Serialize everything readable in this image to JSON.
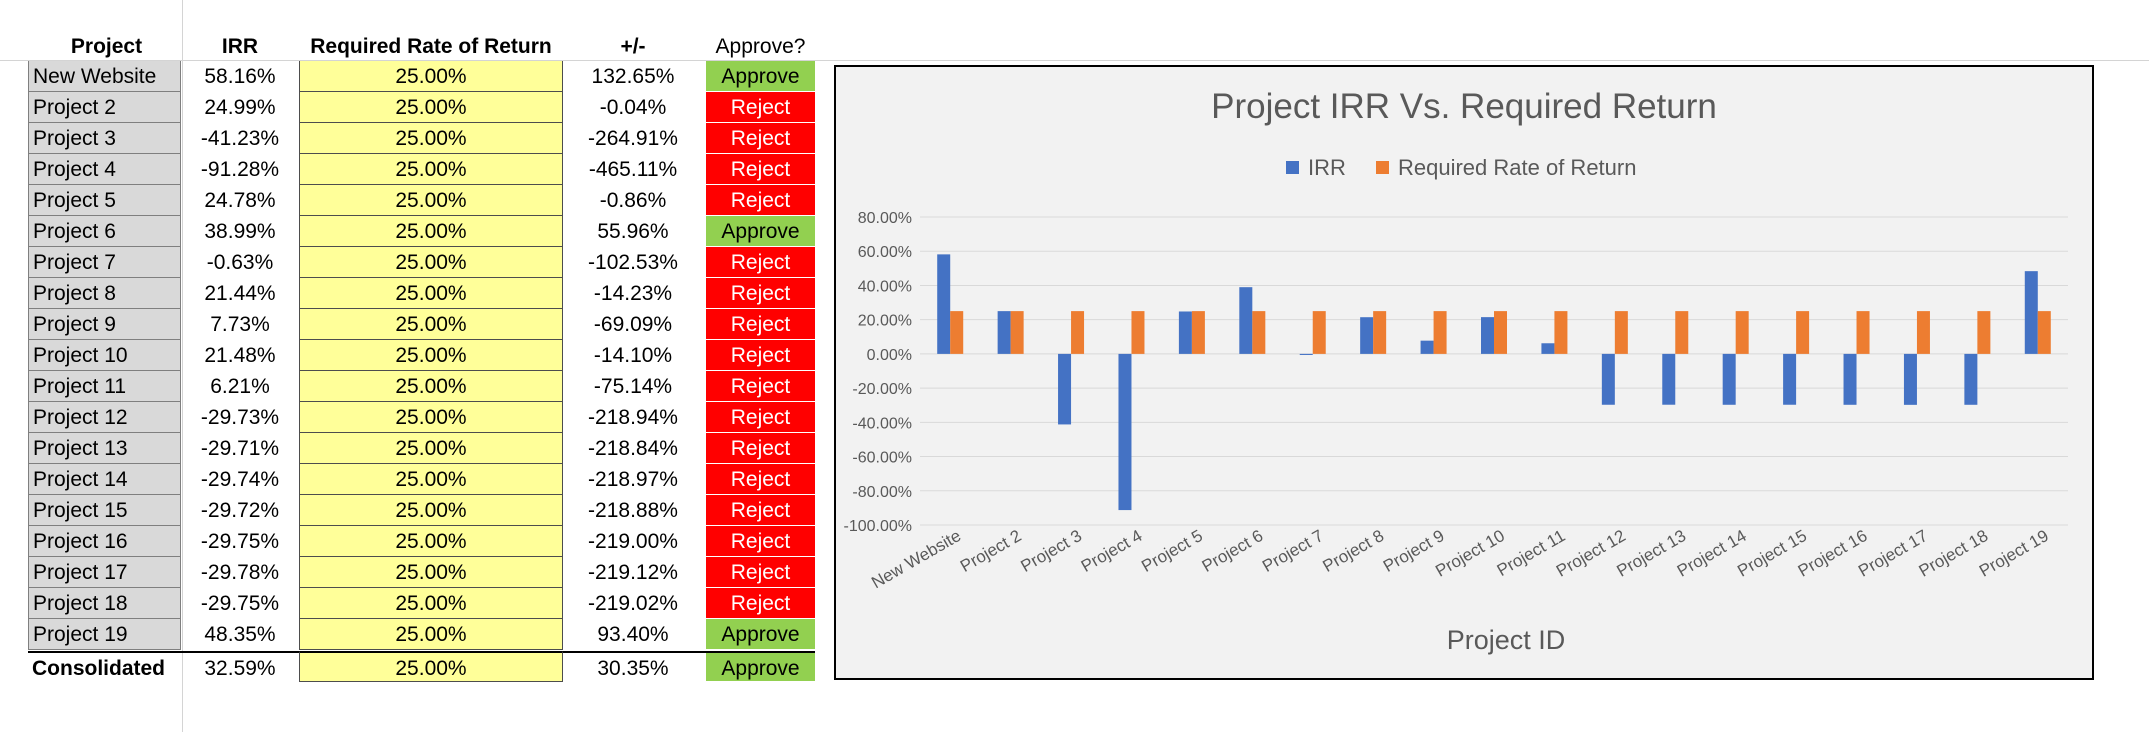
{
  "table": {
    "headers": {
      "project": "Project",
      "irr": "IRR",
      "rrr": "Required Rate of Return",
      "diff": "+/-",
      "approve": "Approve?"
    },
    "rows": [
      {
        "project": "New Website",
        "irr": "58.16%",
        "rrr": "25.00%",
        "diff": "132.65%",
        "decision": "Approve"
      },
      {
        "project": "Project 2",
        "irr": "24.99%",
        "rrr": "25.00%",
        "diff": "-0.04%",
        "decision": "Reject"
      },
      {
        "project": "Project 3",
        "irr": "-41.23%",
        "rrr": "25.00%",
        "diff": "-264.91%",
        "decision": "Reject"
      },
      {
        "project": "Project 4",
        "irr": "-91.28%",
        "rrr": "25.00%",
        "diff": "-465.11%",
        "decision": "Reject"
      },
      {
        "project": "Project 5",
        "irr": "24.78%",
        "rrr": "25.00%",
        "diff": "-0.86%",
        "decision": "Reject"
      },
      {
        "project": "Project 6",
        "irr": "38.99%",
        "rrr": "25.00%",
        "diff": "55.96%",
        "decision": "Approve"
      },
      {
        "project": "Project 7",
        "irr": "-0.63%",
        "rrr": "25.00%",
        "diff": "-102.53%",
        "decision": "Reject"
      },
      {
        "project": "Project 8",
        "irr": "21.44%",
        "rrr": "25.00%",
        "diff": "-14.23%",
        "decision": "Reject"
      },
      {
        "project": "Project 9",
        "irr": "7.73%",
        "rrr": "25.00%",
        "diff": "-69.09%",
        "decision": "Reject"
      },
      {
        "project": "Project 10",
        "irr": "21.48%",
        "rrr": "25.00%",
        "diff": "-14.10%",
        "decision": "Reject"
      },
      {
        "project": "Project 11",
        "irr": "6.21%",
        "rrr": "25.00%",
        "diff": "-75.14%",
        "decision": "Reject"
      },
      {
        "project": "Project 12",
        "irr": "-29.73%",
        "rrr": "25.00%",
        "diff": "-218.94%",
        "decision": "Reject"
      },
      {
        "project": "Project 13",
        "irr": "-29.71%",
        "rrr": "25.00%",
        "diff": "-218.84%",
        "decision": "Reject"
      },
      {
        "project": "Project 14",
        "irr": "-29.74%",
        "rrr": "25.00%",
        "diff": "-218.97%",
        "decision": "Reject"
      },
      {
        "project": "Project 15",
        "irr": "-29.72%",
        "rrr": "25.00%",
        "diff": "-218.88%",
        "decision": "Reject"
      },
      {
        "project": "Project 16",
        "irr": "-29.75%",
        "rrr": "25.00%",
        "diff": "-219.00%",
        "decision": "Reject"
      },
      {
        "project": "Project 17",
        "irr": "-29.78%",
        "rrr": "25.00%",
        "diff": "-219.12%",
        "decision": "Reject"
      },
      {
        "project": "Project 18",
        "irr": "-29.75%",
        "rrr": "25.00%",
        "diff": "-219.02%",
        "decision": "Reject"
      },
      {
        "project": "Project 19",
        "irr": "48.35%",
        "rrr": "25.00%",
        "diff": "93.40%",
        "decision": "Approve"
      }
    ],
    "total": {
      "project": "Consolidated",
      "irr": "32.59%",
      "rrr": "25.00%",
      "diff": "30.35%",
      "decision": "Approve"
    }
  },
  "colors": {
    "approve": "#92d050",
    "reject": "#ff0000",
    "required_fill": "#ffff99",
    "project_fill": "#d9d9d9",
    "irr_series": "#4472c4",
    "rrr_series": "#ed7d31"
  },
  "chart_data": {
    "type": "bar",
    "title": "Project IRR Vs. Required Return",
    "xlabel": "Project ID",
    "ylabel": "",
    "ylim": [
      -100,
      80
    ],
    "yticks": [
      80,
      60,
      40,
      20,
      0,
      -20,
      -40,
      -60,
      -80,
      -100
    ],
    "ytick_labels": [
      "80.00%",
      "60.00%",
      "40.00%",
      "20.00%",
      "0.00%",
      "-20.00%",
      "-40.00%",
      "-60.00%",
      "-80.00%",
      "-100.00%"
    ],
    "grid": true,
    "legend": "top",
    "categories": [
      "New Website",
      "Project 2",
      "Project 3",
      "Project 4",
      "Project 5",
      "Project 6",
      "Project 7",
      "Project 8",
      "Project 9",
      "Project 10",
      "Project 11",
      "Project 12",
      "Project 13",
      "Project 14",
      "Project 15",
      "Project 16",
      "Project 17",
      "Project 18",
      "Project 19"
    ],
    "series": [
      {
        "name": "IRR",
        "color": "#4472c4",
        "values": [
          58.16,
          24.99,
          -41.23,
          -91.28,
          24.78,
          38.99,
          -0.63,
          21.44,
          7.73,
          21.48,
          6.21,
          -29.73,
          -29.71,
          -29.74,
          -29.72,
          -29.75,
          -29.78,
          -29.75,
          48.35
        ]
      },
      {
        "name": "Required Rate of Return",
        "color": "#ed7d31",
        "values": [
          25,
          25,
          25,
          25,
          25,
          25,
          25,
          25,
          25,
          25,
          25,
          25,
          25,
          25,
          25,
          25,
          25,
          25,
          25
        ]
      }
    ]
  }
}
